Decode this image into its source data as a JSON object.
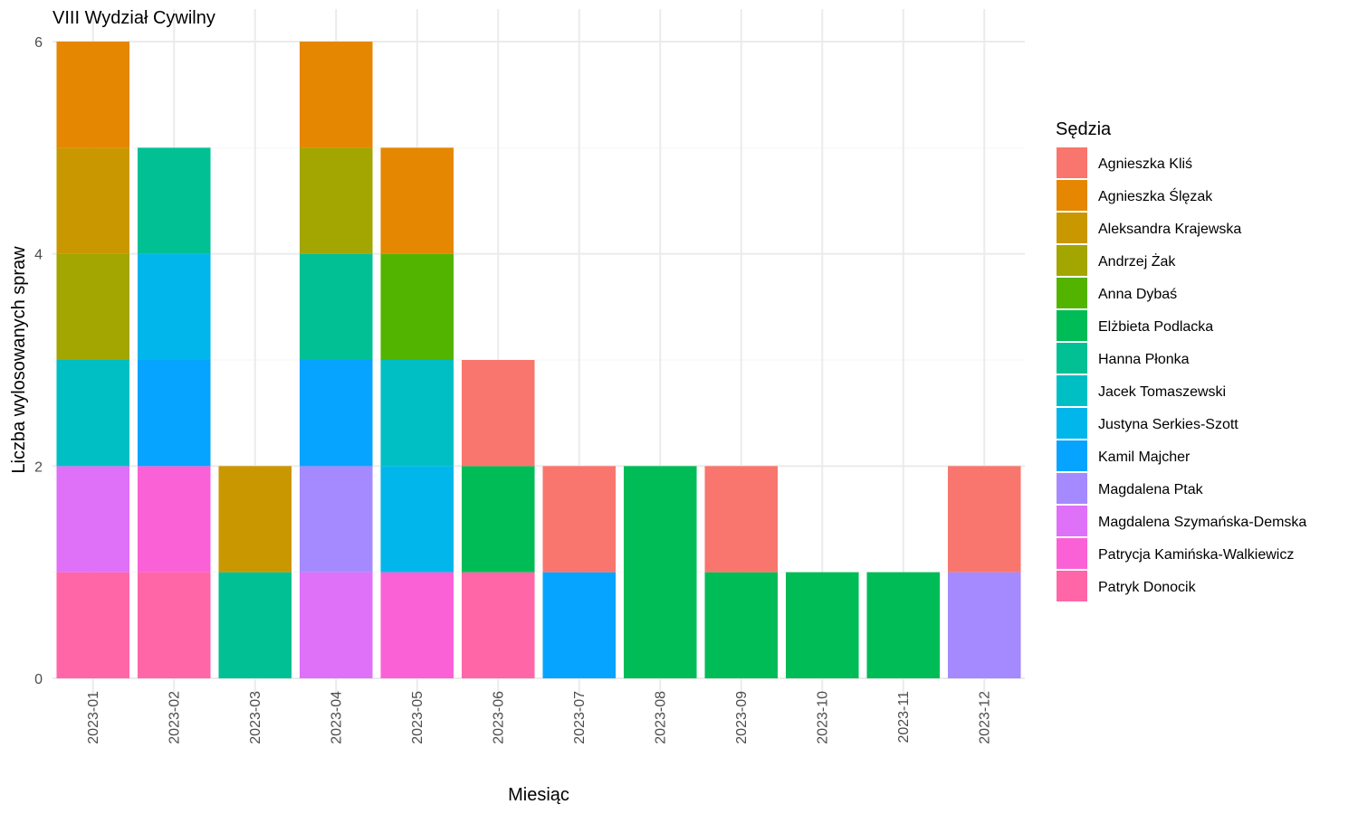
{
  "chart_data": {
    "type": "bar",
    "stacked": true,
    "title": "VIII Wydział Cywilny",
    "xlabel": "Miesiąc",
    "ylabel": "Liczba wylosowanych spraw",
    "ylim": [
      0,
      6
    ],
    "yticks": [
      0,
      2,
      4,
      6
    ],
    "grid": true,
    "legend_position": "right",
    "legend_title": "Sędzia",
    "categories": [
      "2023-01",
      "2023-02",
      "2023-03",
      "2023-04",
      "2023-05",
      "2023-06",
      "2023-07",
      "2023-08",
      "2023-09",
      "2023-10",
      "2023-11",
      "2023-12"
    ],
    "series": [
      {
        "name": "Agnieszka Kliś",
        "color": "#F8766D",
        "values": [
          0,
          0,
          0,
          0,
          0,
          1,
          1,
          0,
          1,
          0,
          0,
          1
        ]
      },
      {
        "name": "Agnieszka Ślęzak",
        "color": "#E58700",
        "values": [
          1,
          0,
          0,
          1,
          1,
          0,
          0,
          0,
          0,
          0,
          0,
          0
        ]
      },
      {
        "name": "Aleksandra Krajewska",
        "color": "#C99800",
        "values": [
          1,
          0,
          1,
          0,
          0,
          0,
          0,
          0,
          0,
          0,
          0,
          0
        ]
      },
      {
        "name": "Andrzej Żak",
        "color": "#A3A500",
        "values": [
          1,
          0,
          0,
          1,
          0,
          0,
          0,
          0,
          0,
          0,
          0,
          0
        ]
      },
      {
        "name": "Anna Dybaś",
        "color": "#53B400",
        "values": [
          0,
          0,
          0,
          0,
          1,
          0,
          0,
          0,
          0,
          0,
          0,
          0
        ]
      },
      {
        "name": "Elżbieta Podlacka",
        "color": "#00BC56",
        "values": [
          0,
          0,
          0,
          0,
          0,
          1,
          0,
          2,
          1,
          1,
          1,
          0
        ]
      },
      {
        "name": "Hanna Płonka",
        "color": "#00C094",
        "values": [
          0,
          1,
          1,
          1,
          0,
          0,
          0,
          0,
          0,
          0,
          0,
          0
        ]
      },
      {
        "name": "Jacek Tomaszewski",
        "color": "#00BFC4",
        "values": [
          1,
          0,
          0,
          0,
          1,
          0,
          0,
          0,
          0,
          0,
          0,
          0
        ]
      },
      {
        "name": "Justyna Serkies-Szott",
        "color": "#00B6EB",
        "values": [
          0,
          1,
          0,
          0,
          1,
          0,
          0,
          0,
          0,
          0,
          0,
          0
        ]
      },
      {
        "name": "Kamil Majcher",
        "color": "#06A4FF",
        "values": [
          0,
          1,
          0,
          1,
          0,
          0,
          1,
          0,
          0,
          0,
          0,
          0
        ]
      },
      {
        "name": "Magdalena Ptak",
        "color": "#A58AFF",
        "values": [
          0,
          0,
          0,
          1,
          0,
          0,
          0,
          0,
          0,
          0,
          0,
          1
        ]
      },
      {
        "name": "Magdalena Szymańska-Demska",
        "color": "#DF70F8",
        "values": [
          1,
          0,
          0,
          1,
          0,
          0,
          0,
          0,
          0,
          0,
          0,
          0
        ]
      },
      {
        "name": "Patrycja Kamińska-Walkiewicz",
        "color": "#FB61D7",
        "values": [
          0,
          1,
          0,
          0,
          1,
          0,
          0,
          0,
          0,
          0,
          0,
          0
        ]
      },
      {
        "name": "Patryk Donocik",
        "color": "#FF66A8",
        "values": [
          1,
          1,
          0,
          0,
          0,
          1,
          0,
          0,
          0,
          0,
          0,
          0
        ]
      }
    ]
  }
}
